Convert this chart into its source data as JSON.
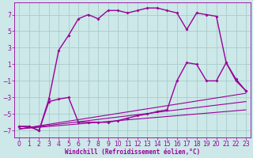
{
  "background_color": "#cce8e8",
  "grid_color": "#aacccc",
  "line_color": "#990099",
  "xlabel": "Windchill (Refroidissement éolien,°C)",
  "xlim": [
    -0.5,
    23.5
  ],
  "ylim": [
    -7.8,
    8.5
  ],
  "yticks": [
    -7,
    -5,
    -3,
    -1,
    1,
    3,
    5,
    7
  ],
  "xticks": [
    0,
    1,
    2,
    3,
    4,
    5,
    6,
    7,
    8,
    9,
    10,
    11,
    12,
    13,
    14,
    15,
    16,
    17,
    18,
    19,
    20,
    21,
    22,
    23
  ],
  "series": [
    {
      "x": [
        0,
        1,
        2,
        3,
        4,
        5,
        6,
        7,
        8,
        9,
        10,
        11,
        12,
        13,
        14,
        15,
        16,
        17,
        18,
        19,
        20,
        21,
        22,
        23
      ],
      "y": [
        -6.5,
        -6.5,
        -7.0,
        -3.2,
        2.7,
        4.5,
        6.5,
        7.0,
        6.5,
        7.5,
        7.5,
        7.2,
        7.5,
        7.8,
        7.8,
        7.5,
        7.2,
        5.2,
        7.2,
        7.0,
        6.8,
        1.2,
        -1.0,
        -2.2
      ],
      "marker": true,
      "linewidth": 1.0
    },
    {
      "x": [
        0,
        1,
        2,
        3,
        4,
        5,
        6,
        7,
        8,
        9,
        10,
        11,
        12,
        13,
        14,
        15,
        16,
        17,
        18,
        19,
        20,
        21,
        22,
        23
      ],
      "y": [
        -6.5,
        -6.5,
        -7.0,
        -3.5,
        -3.2,
        -3.0,
        -6.0,
        -6.0,
        -6.0,
        -6.0,
        -5.8,
        -5.5,
        -5.2,
        -5.0,
        -4.7,
        -4.5,
        -1.0,
        1.2,
        1.0,
        -1.0,
        -1.0,
        1.2,
        -0.8,
        -2.2
      ],
      "marker": true,
      "linewidth": 1.0
    },
    {
      "x": [
        0,
        23
      ],
      "y": [
        -6.8,
        -2.5
      ],
      "marker": false,
      "linewidth": 0.8
    },
    {
      "x": [
        0,
        23
      ],
      "y": [
        -6.8,
        -3.5
      ],
      "marker": false,
      "linewidth": 0.8
    },
    {
      "x": [
        0,
        23
      ],
      "y": [
        -6.8,
        -4.5
      ],
      "marker": false,
      "linewidth": 0.8
    }
  ]
}
